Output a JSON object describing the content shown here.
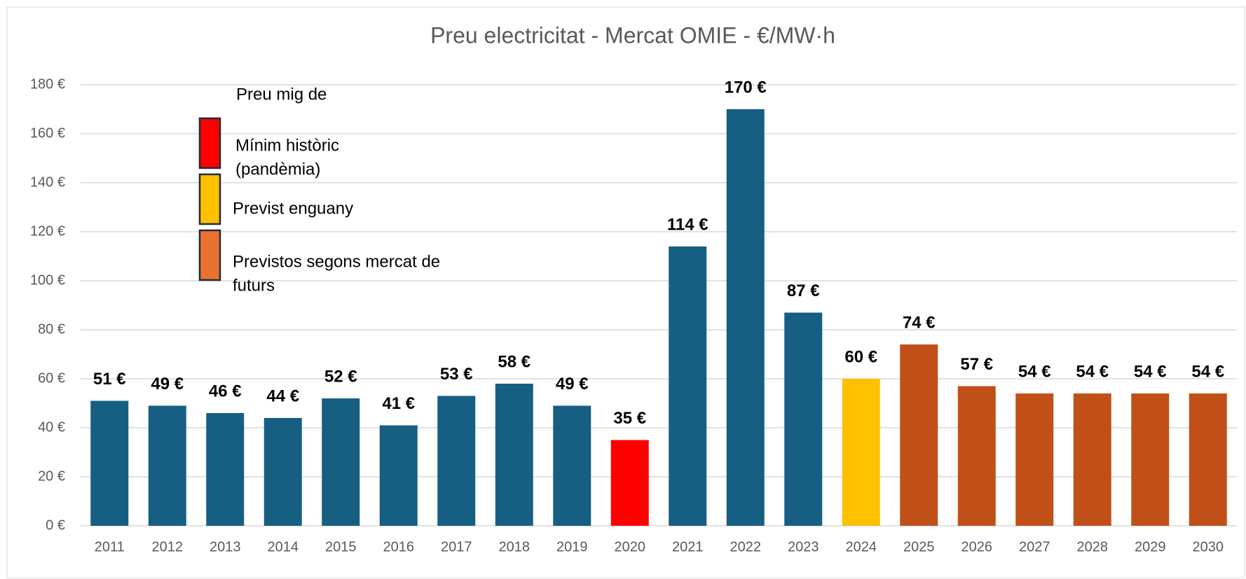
{
  "chart_data": {
    "type": "bar",
    "title": "Preu electricitat - Mercat OMIE - €/MW·h",
    "categories": [
      "2011",
      "2012",
      "2013",
      "2014",
      "2015",
      "2016",
      "2017",
      "2018",
      "2019",
      "2020",
      "2021",
      "2022",
      "2023",
      "2024",
      "2025",
      "2026",
      "2027",
      "2028",
      "2029",
      "2030"
    ],
    "values": [
      51,
      49,
      46,
      44,
      52,
      41,
      53,
      58,
      49,
      35,
      114,
      170,
      87,
      60,
      74,
      57,
      54,
      54,
      54,
      54
    ],
    "value_labels": [
      "51 €",
      "49 €",
      "46 €",
      "44 €",
      "52 €",
      "41 €",
      "53 €",
      "58 €",
      "49 €",
      "35 €",
      "114 €",
      "170 €",
      "87 €",
      "60 €",
      "74 €",
      "57 €",
      "54 €",
      "54 €",
      "54 €",
      "54 €"
    ],
    "colors": [
      "#175f82",
      "#175f82",
      "#175f82",
      "#175f82",
      "#175f82",
      "#175f82",
      "#175f82",
      "#175f82",
      "#175f82",
      "#ff0000",
      "#175f82",
      "#175f82",
      "#175f82",
      "#ffc000",
      "#c05018",
      "#c05018",
      "#c05018",
      "#c05018",
      "#c05018",
      "#c05018"
    ],
    "ylim": [
      0,
      180
    ],
    "yticks": [
      {
        "value": 0,
        "label": "0 €"
      },
      {
        "value": 20,
        "label": "20 €"
      },
      {
        "value": 40,
        "label": "40 €"
      },
      {
        "value": 60,
        "label": "60 €"
      },
      {
        "value": 80,
        "label": "80 €"
      },
      {
        "value": 100,
        "label": "100 €"
      },
      {
        "value": 120,
        "label": "120 €"
      },
      {
        "value": 140,
        "label": "140 €"
      },
      {
        "value": 160,
        "label": "160 €"
      },
      {
        "value": 180,
        "label": "180 €"
      }
    ],
    "grid": true,
    "legend": {
      "title": "Preu mig de",
      "entries": [
        {
          "label": [
            "Mínim històric",
            "(pandèmia)"
          ],
          "color": "#ff0000"
        },
        {
          "label": [
            "Previst enguany"
          ],
          "color": "#ffc000"
        },
        {
          "label": [
            "Previstos segons mercat de",
            "futurs"
          ],
          "color": "#e97132"
        }
      ]
    }
  }
}
